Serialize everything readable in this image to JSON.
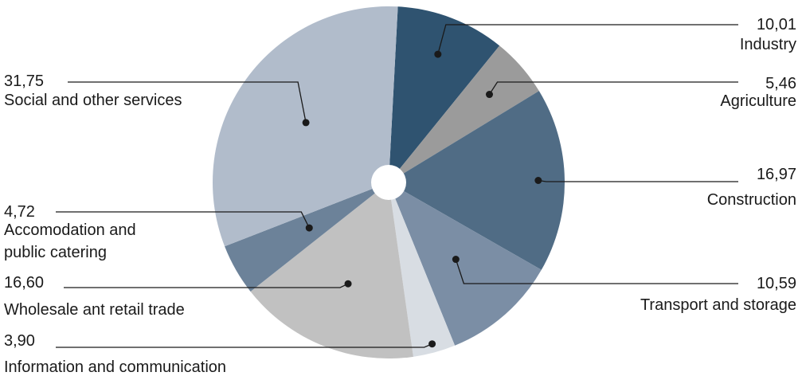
{
  "chart_data": {
    "type": "pie",
    "title": "",
    "legend": "none",
    "slices": [
      {
        "name": "Industry",
        "value": 10.01,
        "value_label": "10,01",
        "color": "#2f5370"
      },
      {
        "name": "Agriculture",
        "value": 5.46,
        "value_label": "5,46",
        "color": "#9b9b9b"
      },
      {
        "name": "Construction",
        "value": 16.97,
        "value_label": "16,97",
        "color": "#506c85"
      },
      {
        "name": "Transport and storage",
        "value": 10.59,
        "value_label": "10,59",
        "color": "#7b8ea5"
      },
      {
        "name": "Information and communication",
        "value": 3.9,
        "value_label": "3,90",
        "color": "#d8dde3"
      },
      {
        "name": "Wholesale ant retail trade",
        "value": 16.6,
        "value_label": "16,60",
        "color": "#c1c1c1"
      },
      {
        "name": "Accomodation and public catering",
        "value": 4.72,
        "value_label": "4,72",
        "color": "#6c8299"
      },
      {
        "name": "Social and other services",
        "value": 31.75,
        "value_label": "31,75",
        "color": "#b1bccb"
      }
    ]
  }
}
